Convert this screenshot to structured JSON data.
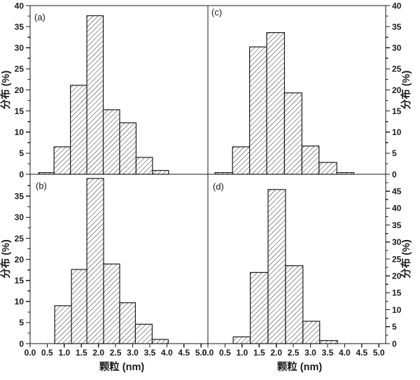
{
  "figure": {
    "xlabel": "颗粒 (nm)",
    "ylabel": "分布 (%)",
    "x_tick_labels": [
      "0.0",
      "0.5",
      "1.0",
      "1.5",
      "2.0",
      "2.5",
      "3.0",
      "3.5",
      "4.0",
      "4.5",
      "5.0"
    ],
    "colors": {
      "axis": "#1a1a1a",
      "bar_fill": "#ffffff",
      "hatch": "#2b2b2b",
      "background": "#ffffff"
    },
    "hatch_style": "diagonal-forward-slash"
  },
  "chart_data": [
    {
      "id": "a",
      "type": "bar",
      "panel_label": "(a)",
      "position": "top-left",
      "xlabel": "颗粒 (nm)",
      "ylabel": "分布 (%)",
      "ylabel_side": "left",
      "xlim": [
        0,
        5.2
      ],
      "ylim": [
        0,
        40
      ],
      "ytick_step": 5,
      "ytick_minor_step": 2.5,
      "ytick_labels": [
        "0",
        "5",
        "10",
        "15",
        "20",
        "25",
        "30",
        "35",
        "40"
      ],
      "bars": [
        {
          "x0": 0.25,
          "x1": 0.7,
          "value": 0.4
        },
        {
          "x0": 0.7,
          "x1": 1.18,
          "value": 6.5
        },
        {
          "x0": 1.18,
          "x1": 1.66,
          "value": 21.1
        },
        {
          "x0": 1.66,
          "x1": 2.14,
          "value": 37.6
        },
        {
          "x0": 2.14,
          "x1": 2.62,
          "value": 15.3
        },
        {
          "x0": 2.62,
          "x1": 3.1,
          "value": 12.2
        },
        {
          "x0": 3.1,
          "x1": 3.58,
          "value": 4.0
        },
        {
          "x0": 3.58,
          "x1": 4.05,
          "value": 0.9
        }
      ]
    },
    {
      "id": "b",
      "type": "bar",
      "panel_label": "(b)",
      "position": "bottom-left",
      "xlabel": "颗粒 (nm)",
      "ylabel": "分布 (%)",
      "ylabel_side": "left",
      "xlim": [
        0,
        5.2
      ],
      "ylim": [
        0,
        40.2
      ],
      "ytick_step": 5,
      "ytick_minor_step": 2.5,
      "ytick_labels": [
        "0",
        "5",
        "10",
        "15",
        "20",
        "25",
        "30",
        "35"
      ],
      "bars": [
        {
          "x0": 0.72,
          "x1": 1.21,
          "value": 9.0
        },
        {
          "x0": 1.21,
          "x1": 1.66,
          "value": 17.6
        },
        {
          "x0": 1.66,
          "x1": 2.15,
          "value": 39.2
        },
        {
          "x0": 2.15,
          "x1": 2.62,
          "value": 18.9
        },
        {
          "x0": 2.62,
          "x1": 3.08,
          "value": 9.7
        },
        {
          "x0": 3.08,
          "x1": 3.57,
          "value": 4.6
        },
        {
          "x0": 3.57,
          "x1": 4.04,
          "value": 1.0
        }
      ]
    },
    {
      "id": "c",
      "type": "bar",
      "panel_label": "(c)",
      "position": "top-right",
      "xlabel": "颗粒 (nm)",
      "ylabel": "分布 (%)",
      "ylabel_side": "right",
      "xlim": [
        0,
        5.2
      ],
      "ylim": [
        0,
        40
      ],
      "ytick_step": 5,
      "ytick_minor_step": 2.5,
      "ytick_labels": [
        "0",
        "5",
        "10",
        "15",
        "20",
        "25",
        "30",
        "35",
        "40"
      ],
      "bars": [
        {
          "x0": 0.21,
          "x1": 0.72,
          "value": 0.4
        },
        {
          "x0": 0.72,
          "x1": 1.22,
          "value": 6.5
        },
        {
          "x0": 1.22,
          "x1": 1.72,
          "value": 30.2
        },
        {
          "x0": 1.72,
          "x1": 2.24,
          "value": 33.6
        },
        {
          "x0": 2.24,
          "x1": 2.75,
          "value": 19.3
        },
        {
          "x0": 2.75,
          "x1": 3.25,
          "value": 6.7
        },
        {
          "x0": 3.25,
          "x1": 3.77,
          "value": 2.8
        },
        {
          "x0": 3.77,
          "x1": 4.27,
          "value": 0.4
        }
      ]
    },
    {
      "id": "d",
      "type": "bar",
      "panel_label": "(d)",
      "position": "bottom-right",
      "xlabel": "颗粒 (nm)",
      "ylabel": "分布 (%)",
      "ylabel_side": "right",
      "xlim": [
        0,
        5.2
      ],
      "ylim": [
        0,
        50
      ],
      "ytick_step": 5,
      "ytick_minor_step": 2.5,
      "ytick_labels": [
        "0",
        "5",
        "10",
        "15",
        "20",
        "25",
        "30",
        "35",
        "40",
        "45"
      ],
      "bars": [
        {
          "x0": 0.74,
          "x1": 1.24,
          "value": 2.0
        },
        {
          "x0": 1.24,
          "x1": 1.76,
          "value": 21.0
        },
        {
          "x0": 1.76,
          "x1": 2.27,
          "value": 45.5
        },
        {
          "x0": 2.27,
          "x1": 2.78,
          "value": 23.0
        },
        {
          "x0": 2.78,
          "x1": 3.27,
          "value": 6.6
        },
        {
          "x0": 3.27,
          "x1": 3.79,
          "value": 0.9
        }
      ]
    }
  ]
}
